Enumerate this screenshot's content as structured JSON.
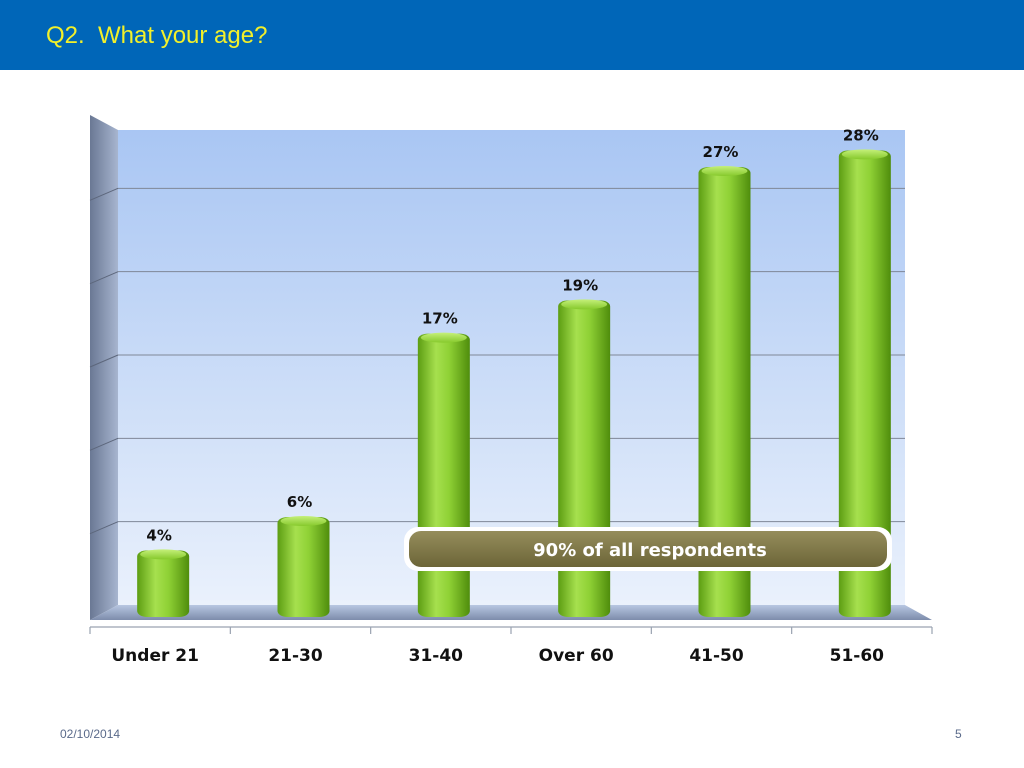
{
  "header": {
    "title": "Q2.  What your age?",
    "background_color": "#0066b8",
    "title_color": "#f2f02a"
  },
  "chart_data": {
    "type": "bar",
    "categories": [
      "Under 21",
      "21-30",
      "31-40",
      "Over 60",
      "41-50",
      "51-60"
    ],
    "values": [
      4,
      6,
      17,
      19,
      27,
      28
    ],
    "value_labels": [
      "4%",
      "6%",
      "17%",
      "19%",
      "27%",
      "28%"
    ],
    "ylim": [
      0,
      30
    ],
    "grid": true,
    "bar_color": "#7dc42a",
    "plot_background": "#b7cff5",
    "callout": {
      "text": "90% of all respondents",
      "color": "#7d7648"
    }
  },
  "footer": {
    "date": "02/10/2014",
    "page_number": "5"
  }
}
